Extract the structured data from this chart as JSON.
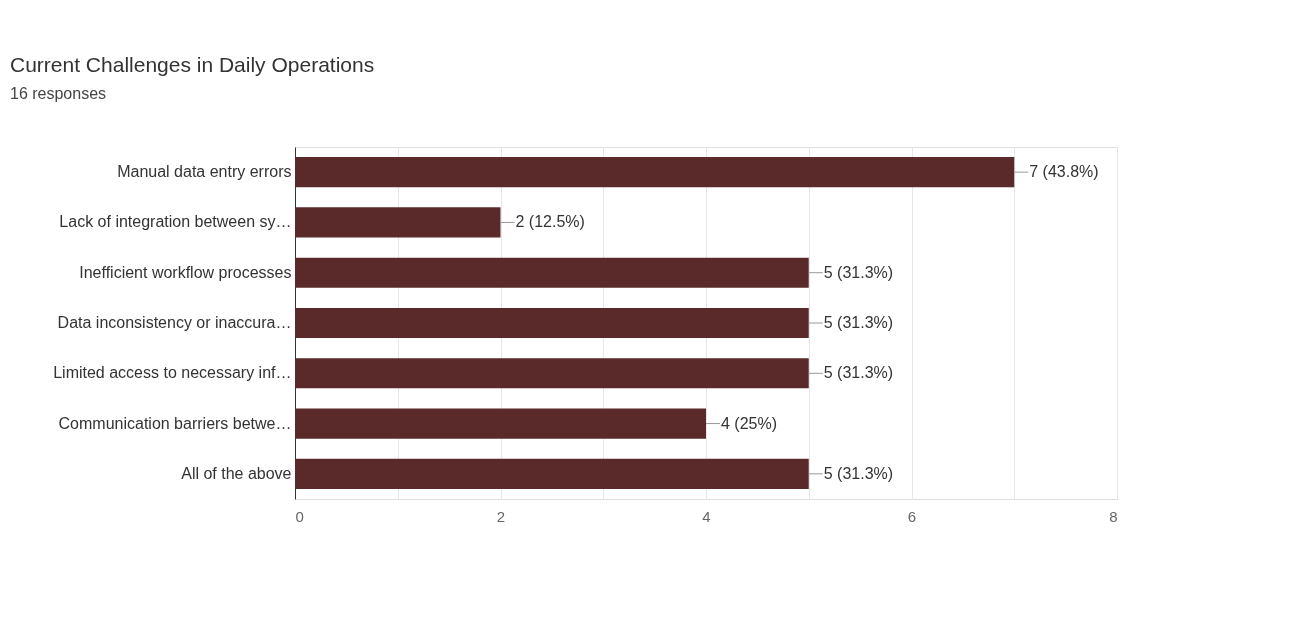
{
  "chart_data": {
    "type": "bar",
    "orientation": "horizontal",
    "title": "Current Challenges in Daily Operations",
    "subtitle": "16 responses",
    "categories": [
      "Manual data entry errors",
      "Lack of integration between sy…",
      "Inefficient workflow processes",
      "Data inconsistency or inaccura…",
      "Limited access to necessary inf…",
      "Communication barriers betwe…",
      "All of the above"
    ],
    "values": [
      7,
      2,
      5,
      5,
      5,
      4,
      5
    ],
    "value_labels": [
      "7 (43.8%)",
      "2 (12.5%)",
      "5 (31.3%)",
      "5 (31.3%)",
      "5 (31.3%)",
      "4 (25%)",
      "5 (31.3%)"
    ],
    "color": "#5a2a2a",
    "xlim": [
      0,
      8
    ],
    "xticks": [
      0,
      {
        "value": 1,
        "label": null
      },
      2,
      {
        "value": 3,
        "label": null
      },
      4,
      {
        "value": 5,
        "label": null
      },
      6,
      {
        "value": 7,
        "label": null
      },
      8
    ],
    "grid": "x"
  }
}
